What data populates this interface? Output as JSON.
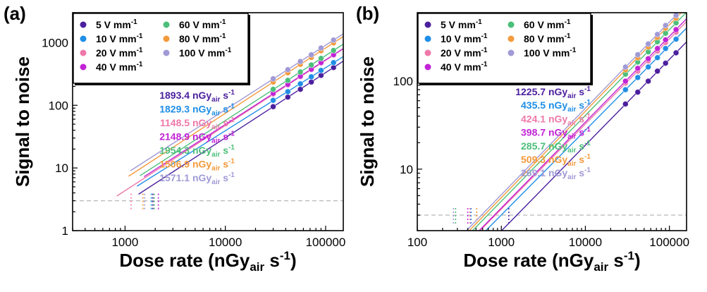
{
  "colors": {
    "5": "#4b1f9e",
    "10": "#1f8ee6",
    "20": "#ef79a9",
    "40": "#c223d6",
    "60": "#4cbf7a",
    "80": "#f39a3c",
    "100": "#a09ad6",
    "threshold": "#b8b8b8"
  },
  "chart_data": [
    {
      "type": "scatter",
      "panel_label": "(a)",
      "xlabel": "Dose rate (nGy_air s^-1)",
      "ylabel": "Signal to noise",
      "xscale": "log",
      "yscale": "log",
      "xlim": [
        300,
        150000
      ],
      "ylim": [
        1,
        3000
      ],
      "xticks": [
        {
          "value": 1000,
          "label": "1000"
        },
        {
          "value": 10000,
          "label": "10000"
        },
        {
          "value": 100000,
          "label": "100000"
        }
      ],
      "yticks": [
        {
          "value": 1,
          "label": "1"
        },
        {
          "value": 10,
          "label": "10"
        },
        {
          "value": 100,
          "label": "100"
        },
        {
          "value": 1000,
          "label": "1000"
        }
      ],
      "threshold_y": 3,
      "legend_location": "top-left",
      "x_points": [
        30000,
        42000,
        56000,
        72000,
        90000,
        120000
      ],
      "series": [
        {
          "key": "5",
          "name": "5 V mm",
          "unit_sup": "-1",
          "lod": "1893.4",
          "values": [
            95,
            135,
            180,
            235,
            300,
            400
          ]
        },
        {
          "key": "10",
          "name": "10 V mm",
          "unit_sup": "-1",
          "lod": "1829.3",
          "values": [
            120,
            165,
            220,
            285,
            360,
            480
          ]
        },
        {
          "key": "20",
          "name": "20 V mm",
          "unit_sup": "-1",
          "lod": "1148.5",
          "values": [
            150,
            210,
            285,
            370,
            470,
            630
          ]
        },
        {
          "key": "40",
          "name": "40 V mm",
          "unit_sup": "-1",
          "lod": "2148.9",
          "values": [
            155,
            215,
            290,
            375,
            480,
            640
          ]
        },
        {
          "key": "60",
          "name": "60 V mm",
          "unit_sup": "-1",
          "lod": "1954.3",
          "values": [
            180,
            250,
            340,
            440,
            560,
            750
          ]
        },
        {
          "key": "80",
          "name": "80 V mm",
          "unit_sup": "-1",
          "lod": "1506.9",
          "values": [
            235,
            330,
            450,
            580,
            740,
            990
          ]
        },
        {
          "key": "100",
          "name": "100 V mm",
          "unit_sup": "-1",
          "lod": "1571.1",
          "values": [
            265,
            370,
            500,
            640,
            820,
            1100
          ]
        }
      ],
      "annotation_unit": "nGy",
      "annotation_sub": "air",
      "annotation_suffix": "s",
      "annotation_sup": "-1"
    },
    {
      "type": "scatter",
      "panel_label": "(b)",
      "xlabel": "Dose rate (nGy_air s^-1)",
      "ylabel": "Signal to noise",
      "xscale": "log",
      "yscale": "log",
      "xlim": [
        100,
        160000
      ],
      "ylim": [
        2,
        600
      ],
      "xticks": [
        {
          "value": 100,
          "label": "100"
        },
        {
          "value": 1000,
          "label": "1000"
        },
        {
          "value": 10000,
          "label": "10000"
        },
        {
          "value": 100000,
          "label": "100000"
        }
      ],
      "yticks": [
        {
          "value": 10,
          "label": "10"
        },
        {
          "value": 100,
          "label": "100"
        }
      ],
      "threshold_y": 3,
      "legend_location": "top-left",
      "x_points": [
        30000,
        42000,
        56000,
        72000,
        90000,
        120000
      ],
      "series": [
        {
          "key": "5",
          "name": "5 V mm",
          "unit_sup": "-1",
          "lod": "1225.7",
          "values": [
            55,
            75,
            100,
            130,
            160,
            210
          ]
        },
        {
          "key": "10",
          "name": "10 V mm",
          "unit_sup": "-1",
          "lod": "435.5",
          "values": [
            80,
            110,
            145,
            185,
            235,
            300
          ]
        },
        {
          "key": "20",
          "name": "20 V mm",
          "unit_sup": "-1",
          "lod": "424.1",
          "values": [
            95,
            130,
            170,
            220,
            275,
            360
          ]
        },
        {
          "key": "40",
          "name": "40 V mm",
          "unit_sup": "-1",
          "lod": "398.7",
          "values": [
            100,
            140,
            180,
            235,
            295,
            385
          ]
        },
        {
          "key": "60",
          "name": "60 V mm",
          "unit_sup": "-1",
          "lod": "285.7",
          "values": [
            120,
            165,
            215,
            280,
            350,
            460
          ]
        },
        {
          "key": "80",
          "name": "80 V mm",
          "unit_sup": "-1",
          "lod": "509.3",
          "values": [
            135,
            185,
            245,
            315,
            400,
            520
          ]
        },
        {
          "key": "100",
          "name": "100 V mm",
          "unit_sup": "-1",
          "lod": "269.1",
          "values": [
            145,
            200,
            265,
            340,
            430,
            560
          ]
        }
      ],
      "annotation_unit": "nGy",
      "annotation_sub": "air",
      "annotation_suffix": "s",
      "annotation_sup": "-1"
    }
  ]
}
